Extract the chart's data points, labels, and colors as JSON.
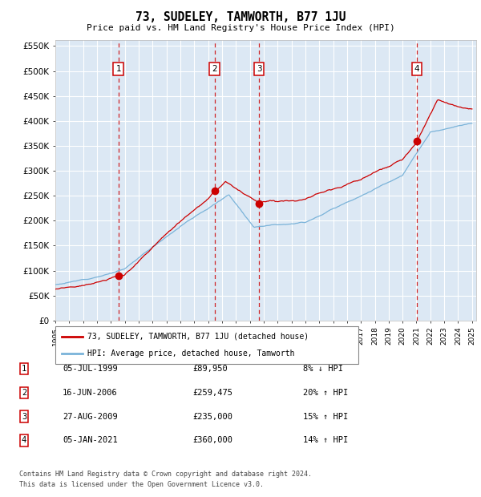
{
  "title": "73, SUDELEY, TAMWORTH, B77 1JU",
  "subtitle": "Price paid vs. HM Land Registry's House Price Index (HPI)",
  "plot_bg_color": "#dce8f4",
  "ylim": [
    0,
    562500
  ],
  "yticks": [
    0,
    50000,
    100000,
    150000,
    200000,
    250000,
    300000,
    350000,
    400000,
    450000,
    500000,
    550000
  ],
  "ytick_labels": [
    "£0",
    "£50K",
    "£100K",
    "£150K",
    "£200K",
    "£250K",
    "£300K",
    "£350K",
    "£400K",
    "£450K",
    "£500K",
    "£550K"
  ],
  "purchases": [
    {
      "label": "1",
      "year": 1999.54,
      "price": 89950,
      "date": "05-JUL-1999",
      "pct": "8%",
      "dir": "↓"
    },
    {
      "label": "2",
      "year": 2006.46,
      "price": 259475,
      "date": "16-JUN-2006",
      "pct": "20%",
      "dir": "↑"
    },
    {
      "label": "3",
      "year": 2009.66,
      "price": 235000,
      "date": "27-AUG-2009",
      "pct": "15%",
      "dir": "↑"
    },
    {
      "label": "4",
      "year": 2021.02,
      "price": 360000,
      "date": "05-JAN-2021",
      "pct": "14%",
      "dir": "↑"
    }
  ],
  "legend_label_red": "73, SUDELEY, TAMWORTH, B77 1JU (detached house)",
  "legend_label_blue": "HPI: Average price, detached house, Tamworth",
  "footer_line1": "Contains HM Land Registry data © Crown copyright and database right 2024.",
  "footer_line2": "This data is licensed under the Open Government Licence v3.0.",
  "hpi_color": "#7ab3d9",
  "price_color": "#cc0000",
  "dashed_color": "#cc0000",
  "grid_color": "#ffffff",
  "box_color": "#cc0000"
}
